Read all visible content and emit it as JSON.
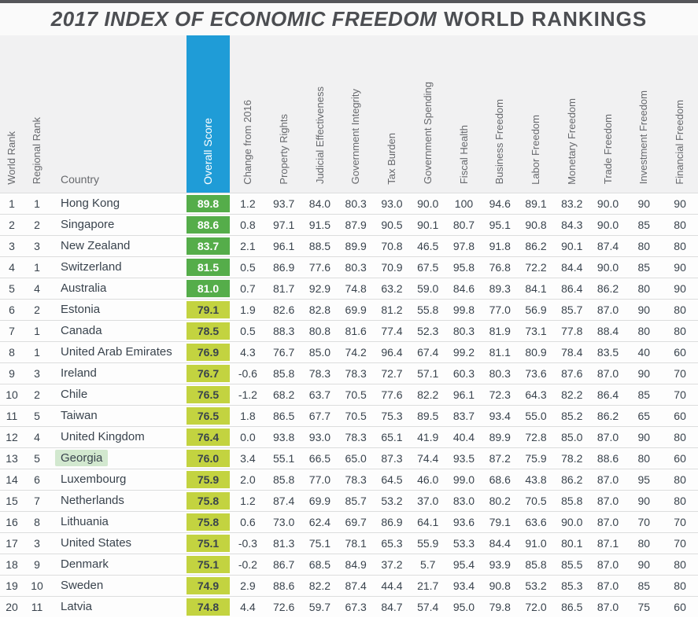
{
  "title": {
    "italic_part": "2017 INDEX OF ECONOMIC FREEDOM",
    "normal_part": "WORLD RANKINGS"
  },
  "colors": {
    "top_bar": "#55565a",
    "header_band": "#f1f1f2",
    "overall_score_header_blue": "#1f9cd7",
    "score_free_green": "#55ad4a",
    "score_mostly_free_yellow": "#c3d340",
    "georgia_highlight_green": "#d2e8cf",
    "text_dark": "#39434d"
  },
  "chart_data": {
    "type": "table",
    "title": "2017 INDEX OF ECONOMIC FREEDOM WORLD RANKINGS",
    "columns": [
      "World Rank",
      "Regional Rank",
      "Country",
      "Overall Score",
      "Change from 2016",
      "Property Rights",
      "Judicial Effectiveness",
      "Government Integrity",
      "Tax Burden",
      "Government Spending",
      "Fiscal Health",
      "Business Freedom",
      "Labor Freedom",
      "Monetary Freedom",
      "Trade Freedom",
      "Investment Freedom",
      "Financial Freedom"
    ],
    "highlighted_country": "Georgia",
    "rows": [
      {
        "world_rank": "1",
        "regional_rank": "1",
        "country": "Hong Kong",
        "overall_score": "89.8",
        "tier": "free",
        "highlighted": false,
        "values": [
          "1.2",
          "93.7",
          "84.0",
          "80.3",
          "93.0",
          "90.0",
          "100",
          "94.6",
          "89.1",
          "83.2",
          "90.0",
          "90",
          "90"
        ]
      },
      {
        "world_rank": "2",
        "regional_rank": "2",
        "country": "Singapore",
        "overall_score": "88.6",
        "tier": "free",
        "highlighted": false,
        "values": [
          "0.8",
          "97.1",
          "91.5",
          "87.9",
          "90.5",
          "90.1",
          "80.7",
          "95.1",
          "90.8",
          "84.3",
          "90.0",
          "85",
          "80"
        ]
      },
      {
        "world_rank": "3",
        "regional_rank": "3",
        "country": "New Zealand",
        "overall_score": "83.7",
        "tier": "free",
        "highlighted": false,
        "values": [
          "2.1",
          "96.1",
          "88.5",
          "89.9",
          "70.8",
          "46.5",
          "97.8",
          "91.8",
          "86.2",
          "90.1",
          "87.4",
          "80",
          "80"
        ]
      },
      {
        "world_rank": "4",
        "regional_rank": "1",
        "country": "Switzerland",
        "overall_score": "81.5",
        "tier": "free",
        "highlighted": false,
        "values": [
          "0.5",
          "86.9",
          "77.6",
          "80.3",
          "70.9",
          "67.5",
          "95.8",
          "76.8",
          "72.2",
          "84.4",
          "90.0",
          "85",
          "90"
        ]
      },
      {
        "world_rank": "5",
        "regional_rank": "4",
        "country": "Australia",
        "overall_score": "81.0",
        "tier": "free",
        "highlighted": false,
        "values": [
          "0.7",
          "81.7",
          "92.9",
          "74.8",
          "63.2",
          "59.0",
          "84.6",
          "89.3",
          "84.1",
          "86.4",
          "86.2",
          "80",
          "90"
        ]
      },
      {
        "world_rank": "6",
        "regional_rank": "2",
        "country": "Estonia",
        "overall_score": "79.1",
        "tier": "mostly",
        "highlighted": false,
        "values": [
          "1.9",
          "82.6",
          "82.8",
          "69.9",
          "81.2",
          "55.8",
          "99.8",
          "77.0",
          "56.9",
          "85.7",
          "87.0",
          "90",
          "80"
        ]
      },
      {
        "world_rank": "7",
        "regional_rank": "1",
        "country": "Canada",
        "overall_score": "78.5",
        "tier": "mostly",
        "highlighted": false,
        "values": [
          "0.5",
          "88.3",
          "80.8",
          "81.6",
          "77.4",
          "52.3",
          "80.3",
          "81.9",
          "73.1",
          "77.8",
          "88.4",
          "80",
          "80"
        ]
      },
      {
        "world_rank": "8",
        "regional_rank": "1",
        "country": "United Arab Emirates",
        "overall_score": "76.9",
        "tier": "mostly",
        "highlighted": false,
        "values": [
          "4.3",
          "76.7",
          "85.0",
          "74.2",
          "96.4",
          "67.4",
          "99.2",
          "81.1",
          "80.9",
          "78.4",
          "83.5",
          "40",
          "60"
        ]
      },
      {
        "world_rank": "9",
        "regional_rank": "3",
        "country": "Ireland",
        "overall_score": "76.7",
        "tier": "mostly",
        "highlighted": false,
        "values": [
          "-0.6",
          "85.8",
          "78.3",
          "78.3",
          "72.7",
          "57.1",
          "60.3",
          "80.3",
          "73.6",
          "87.6",
          "87.0",
          "90",
          "70"
        ]
      },
      {
        "world_rank": "10",
        "regional_rank": "2",
        "country": "Chile",
        "overall_score": "76.5",
        "tier": "mostly",
        "highlighted": false,
        "values": [
          "-1.2",
          "68.2",
          "63.7",
          "70.5",
          "77.6",
          "82.2",
          "96.1",
          "72.3",
          "64.3",
          "82.2",
          "86.4",
          "85",
          "70"
        ]
      },
      {
        "world_rank": "11",
        "regional_rank": "5",
        "country": "Taiwan",
        "overall_score": "76.5",
        "tier": "mostly",
        "highlighted": false,
        "values": [
          "1.8",
          "86.5",
          "67.7",
          "70.5",
          "75.3",
          "89.5",
          "83.7",
          "93.4",
          "55.0",
          "85.2",
          "86.2",
          "65",
          "60"
        ]
      },
      {
        "world_rank": "12",
        "regional_rank": "4",
        "country": "United Kingdom",
        "overall_score": "76.4",
        "tier": "mostly",
        "highlighted": false,
        "values": [
          "0.0",
          "93.8",
          "93.0",
          "78.3",
          "65.1",
          "41.9",
          "40.4",
          "89.9",
          "72.8",
          "85.0",
          "87.0",
          "90",
          "80"
        ]
      },
      {
        "world_rank": "13",
        "regional_rank": "5",
        "country": "Georgia",
        "overall_score": "76.0",
        "tier": "mostly",
        "highlighted": true,
        "values": [
          "3.4",
          "55.1",
          "66.5",
          "65.0",
          "87.3",
          "74.4",
          "93.5",
          "87.2",
          "75.9",
          "78.2",
          "88.6",
          "80",
          "60"
        ]
      },
      {
        "world_rank": "14",
        "regional_rank": "6",
        "country": "Luxembourg",
        "overall_score": "75.9",
        "tier": "mostly",
        "highlighted": false,
        "values": [
          "2.0",
          "85.8",
          "77.0",
          "78.3",
          "64.5",
          "46.0",
          "99.0",
          "68.6",
          "43.8",
          "86.2",
          "87.0",
          "95",
          "80"
        ]
      },
      {
        "world_rank": "15",
        "regional_rank": "7",
        "country": "Netherlands",
        "overall_score": "75.8",
        "tier": "mostly",
        "highlighted": false,
        "values": [
          "1.2",
          "87.4",
          "69.9",
          "85.7",
          "53.2",
          "37.0",
          "83.0",
          "80.2",
          "70.5",
          "85.8",
          "87.0",
          "90",
          "80"
        ]
      },
      {
        "world_rank": "16",
        "regional_rank": "8",
        "country": "Lithuania",
        "overall_score": "75.8",
        "tier": "mostly",
        "highlighted": false,
        "values": [
          "0.6",
          "73.0",
          "62.4",
          "69.7",
          "86.9",
          "64.1",
          "93.6",
          "79.1",
          "63.6",
          "90.0",
          "87.0",
          "70",
          "70"
        ]
      },
      {
        "world_rank": "17",
        "regional_rank": "3",
        "country": "United States",
        "overall_score": "75.1",
        "tier": "mostly",
        "highlighted": false,
        "values": [
          "-0.3",
          "81.3",
          "75.1",
          "78.1",
          "65.3",
          "55.9",
          "53.3",
          "84.4",
          "91.0",
          "80.1",
          "87.1",
          "80",
          "70"
        ]
      },
      {
        "world_rank": "18",
        "regional_rank": "9",
        "country": "Denmark",
        "overall_score": "75.1",
        "tier": "mostly",
        "highlighted": false,
        "values": [
          "-0.2",
          "86.7",
          "68.5",
          "84.9",
          "37.2",
          "5.7",
          "95.4",
          "93.9",
          "85.8",
          "85.5",
          "87.0",
          "90",
          "80"
        ]
      },
      {
        "world_rank": "19",
        "regional_rank": "10",
        "country": "Sweden",
        "overall_score": "74.9",
        "tier": "mostly",
        "highlighted": false,
        "values": [
          "2.9",
          "88.6",
          "82.2",
          "87.4",
          "44.4",
          "21.7",
          "93.4",
          "90.8",
          "53.2",
          "85.3",
          "87.0",
          "85",
          "80"
        ]
      },
      {
        "world_rank": "20",
        "regional_rank": "11",
        "country": "Latvia",
        "overall_score": "74.8",
        "tier": "mostly",
        "highlighted": false,
        "values": [
          "4.4",
          "72.6",
          "59.7",
          "67.3",
          "84.7",
          "57.4",
          "95.0",
          "79.8",
          "72.0",
          "86.5",
          "87.0",
          "75",
          "60"
        ]
      }
    ]
  }
}
